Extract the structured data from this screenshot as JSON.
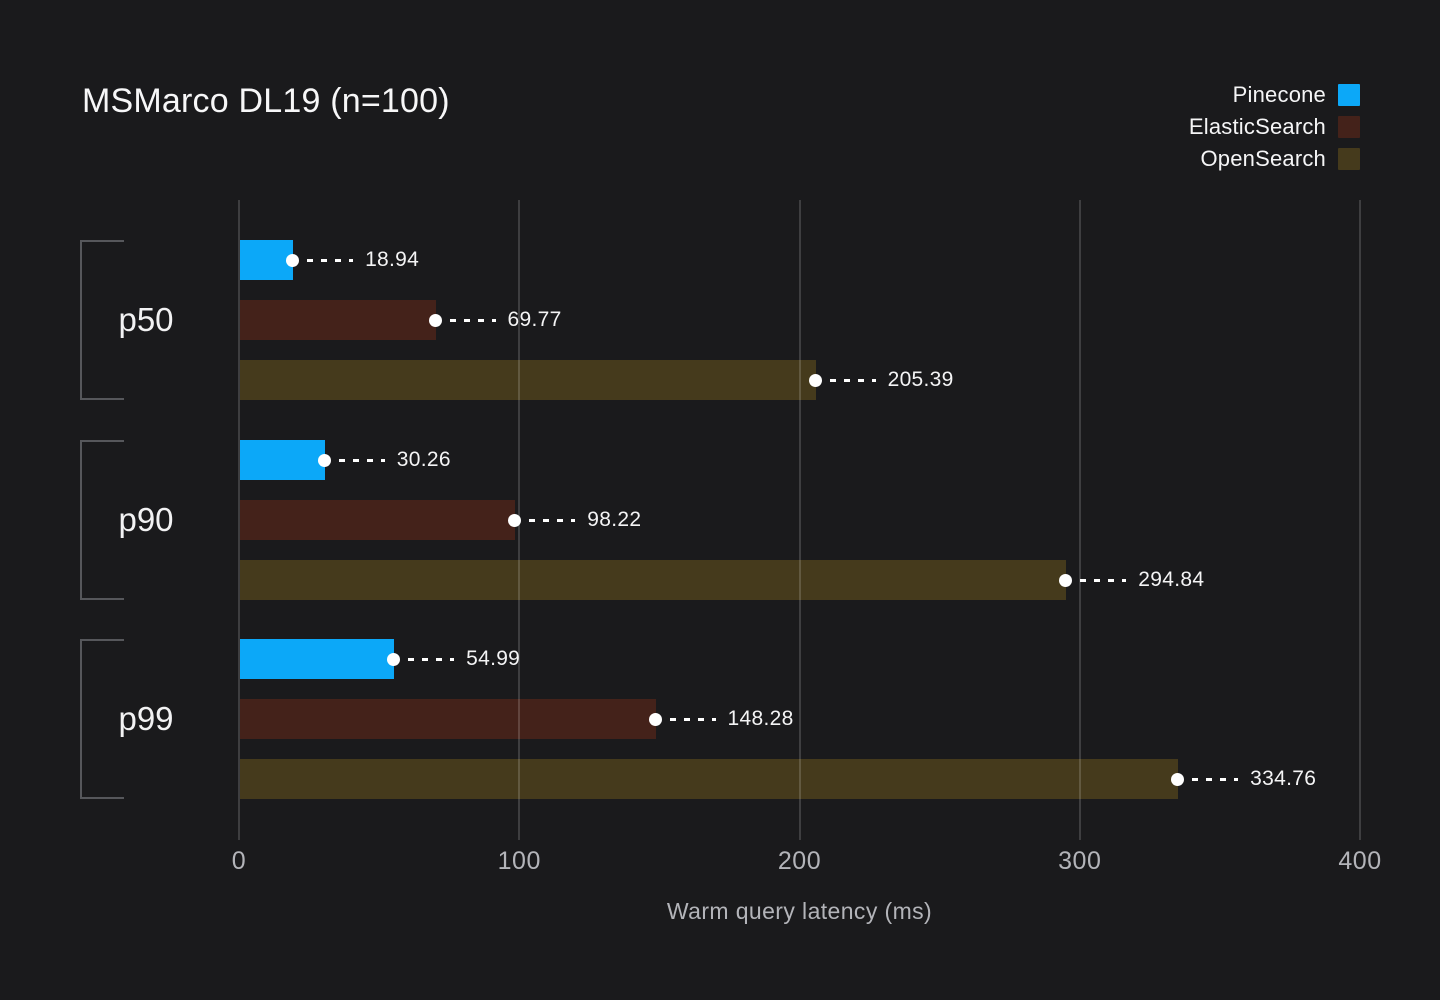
{
  "chart_data": {
    "type": "bar",
    "orientation": "horizontal",
    "title": "MSMarco DL19 (n=100)",
    "xlabel": "Warm query latency (ms)",
    "xlim": [
      0,
      400
    ],
    "xticks": [
      0,
      100,
      200,
      300,
      400
    ],
    "categories": [
      "p50",
      "p90",
      "p99"
    ],
    "series": [
      {
        "name": "Pinecone",
        "color": "#0ca8f8",
        "values": [
          18.94,
          30.26,
          54.99
        ]
      },
      {
        "name": "ElasticSearch",
        "color": "#44221a",
        "values": [
          69.77,
          98.22,
          148.28
        ]
      },
      {
        "name": "OpenSearch",
        "color": "#453a1c",
        "values": [
          205.39,
          294.84,
          334.76
        ]
      }
    ],
    "legend_position": "top-right",
    "grid": "vertical-only",
    "value_label_style": "dot-dashed-leader"
  },
  "colors": {
    "background": "#1a1a1c",
    "text_primary": "#f5f5f6",
    "text_muted": "#b3b4b9",
    "gridline": "rgba(255,255,255,0.16)",
    "bracket": "#56575b",
    "marker": "#ffffff"
  }
}
